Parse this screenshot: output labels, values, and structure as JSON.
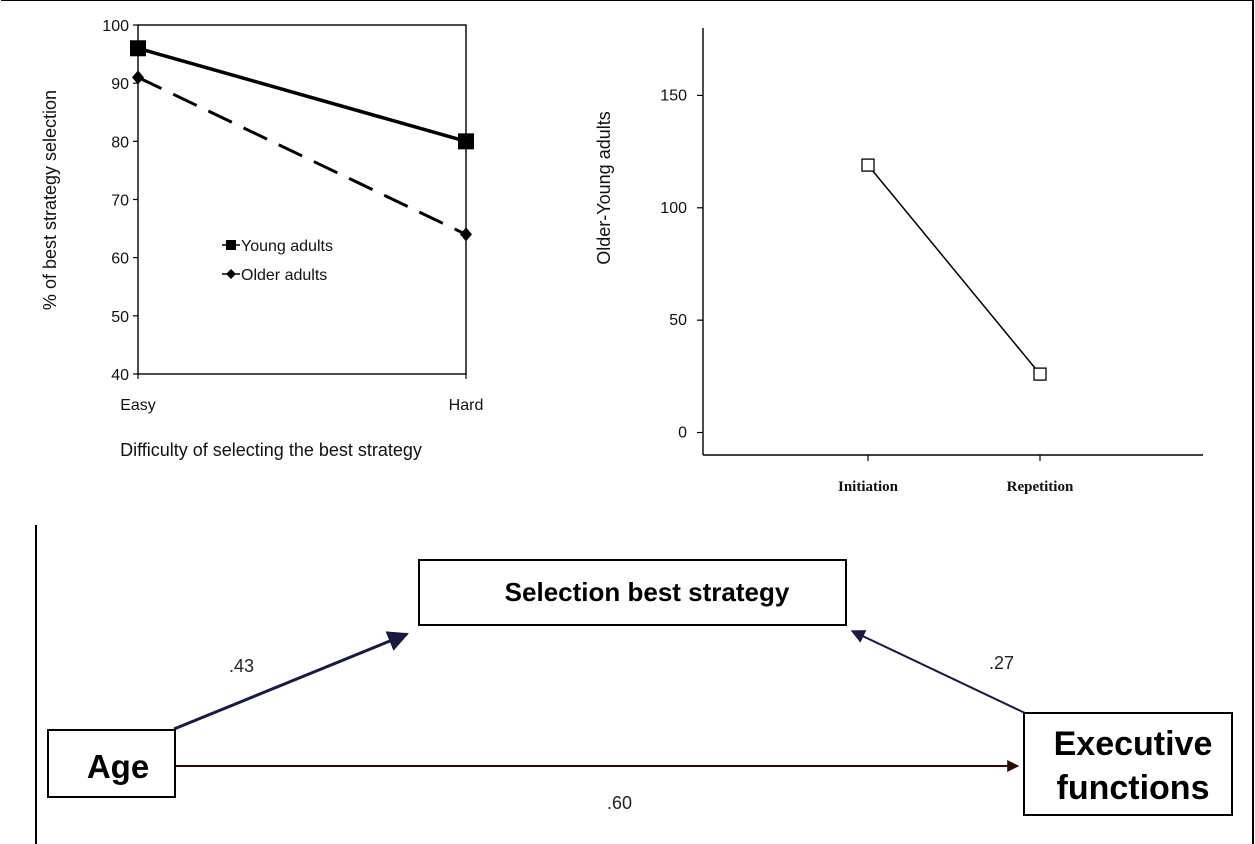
{
  "chart_data": [
    {
      "type": "line",
      "ylabel": "% of best strategy selection",
      "xlabel": "Difficulty of selecting the best strategy",
      "categories": [
        "Easy",
        "Hard"
      ],
      "ylim": [
        40,
        100
      ],
      "yticks": [
        40,
        50,
        60,
        70,
        80,
        90,
        100
      ],
      "legend_position": "center",
      "series": [
        {
          "name": "Young adults",
          "values": [
            96,
            80
          ],
          "marker": "square",
          "line": "solid",
          "color": "#000000"
        },
        {
          "name": "Older adults",
          "values": [
            91,
            64
          ],
          "marker": "diamond",
          "line": "dashed",
          "color": "#000000"
        }
      ]
    },
    {
      "type": "line",
      "ylabel": "Older-Young adults",
      "xlabel": "",
      "categories": [
        "Initiation",
        "Repetition"
      ],
      "ylim": [
        -10,
        180
      ],
      "yticks": [
        0,
        50,
        100,
        150
      ],
      "series": [
        {
          "values": [
            119,
            26
          ],
          "marker": "open-square",
          "line": "solid",
          "color": "#000000"
        }
      ]
    }
  ],
  "diagram": {
    "nodes": {
      "mediator": "Selection best strategy",
      "predictor": "Age",
      "outcome_line1": "Executive",
      "outcome_line2": "functions"
    },
    "edges": {
      "age_to_selection": ".43",
      "exec_to_selection": ".27",
      "age_to_exec": ".60"
    },
    "colors": {
      "arrow": "#1a1a40",
      "direct_arrow": "#2a0a0a"
    }
  }
}
